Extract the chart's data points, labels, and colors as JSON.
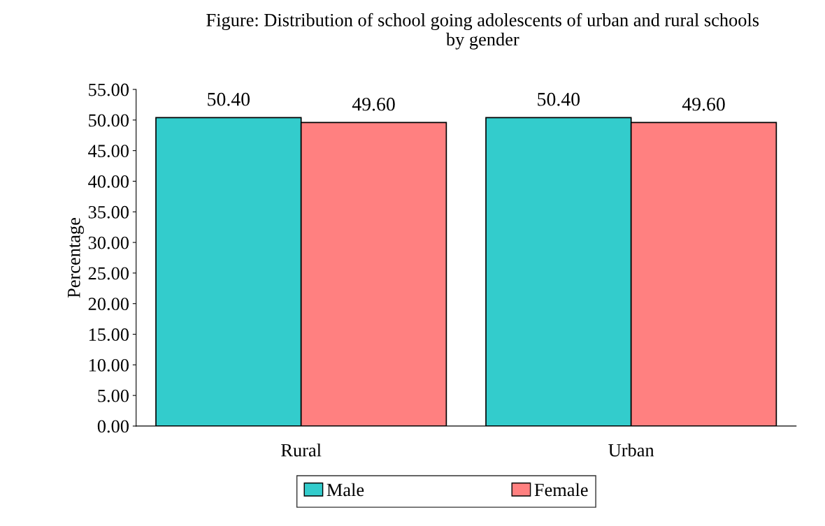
{
  "chart_data": {
    "type": "bar",
    "title": "Figure: Distribution of school going adolescents of urban and rural schools\nby gender",
    "ylabel": "Percentage",
    "categories": [
      "Rural",
      "Urban"
    ],
    "series": [
      {
        "name": "Male",
        "color": "#33cccc",
        "values": [
          50.4,
          50.4
        ],
        "value_labels": [
          "50.40",
          "50.40"
        ]
      },
      {
        "name": "Female",
        "color": "#ff8080",
        "values": [
          49.6,
          49.6
        ],
        "value_labels": [
          "49.60",
          "49.60"
        ]
      }
    ],
    "ylim": [
      0,
      55
    ],
    "yticks": [
      {
        "value": 0,
        "label": "0.00"
      },
      {
        "value": 5,
        "label": "5.00"
      },
      {
        "value": 10,
        "label": "10.00"
      },
      {
        "value": 15,
        "label": "15.00"
      },
      {
        "value": 20,
        "label": "20.00"
      },
      {
        "value": 25,
        "label": "25.00"
      },
      {
        "value": 30,
        "label": "30.00"
      },
      {
        "value": 35,
        "label": "35.00"
      },
      {
        "value": 40,
        "label": "40.00"
      },
      {
        "value": 45,
        "label": "45.00"
      },
      {
        "value": 50,
        "label": "50.00"
      },
      {
        "value": 55,
        "label": "55.00"
      }
    ],
    "grid": false,
    "legend": "bottom"
  }
}
